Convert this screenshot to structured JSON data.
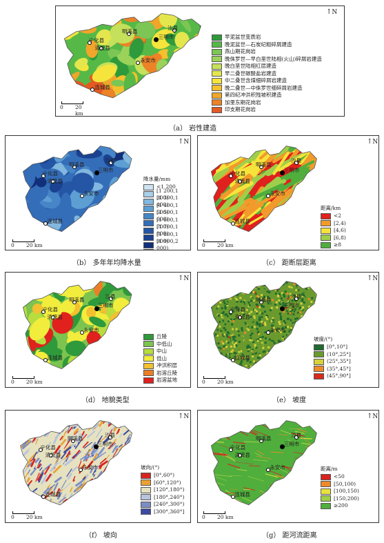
{
  "panels": [
    {
      "id": "a",
      "caption": "（a） 岩性建造",
      "north_label": "N",
      "scale_label_left": "0",
      "scale_label_right": "20 km",
      "places": [
        "宁化县",
        "清流县",
        "明溪县",
        "沙县",
        "三明市",
        "永安市",
        "连城县"
      ],
      "legend_title": "",
      "legend": [
        {
          "label": "早泥盆世变质岩",
          "color": "#2e9a3b"
        },
        {
          "label": "晚泥盆世—石炭纪粗碎屑建造",
          "color": "#56b947"
        },
        {
          "label": "燕山期花岗岩",
          "color": "#7bc654"
        },
        {
          "label": "晚侏罗世—早白垩世陆相(火山)碎屑岩建造",
          "color": "#9bd25a"
        },
        {
          "label": "晚白垩世陆相红层建造",
          "color": "#c5e05a"
        },
        {
          "label": "早二叠世碳酸盐岩建造",
          "color": "#e4e64e"
        },
        {
          "label": "中二叠世含煤细碎屑岩建造",
          "color": "#f4e43c"
        },
        {
          "label": "晚二叠世—中侏罗世细碎屑岩建造",
          "color": "#f6c02c"
        },
        {
          "label": "第四纪冲洪积残坡积建造",
          "color": "#f0a62a"
        },
        {
          "label": "加里东期花岗岩",
          "color": "#ec8327"
        },
        {
          "label": "印支期花岗岩",
          "color": "#e45a22"
        }
      ]
    },
    {
      "id": "b",
      "caption": "（b） 多年年均降水量",
      "north_label": "N",
      "scale_label_left": "0",
      "scale_label_right": "20 km",
      "places": [
        "宁化县",
        "清流县",
        "明溪县",
        "沙县",
        "三明市",
        "永安市",
        "连城县"
      ],
      "legend_title": "降水量/mm",
      "legend": [
        {
          "label": "<1 200",
          "color": "#cfe4f2"
        },
        {
          "label": "[1 200,1 300)",
          "color": "#a9cfe9"
        },
        {
          "label": "[1 300,1 400)",
          "color": "#82b7df"
        },
        {
          "label": "[1 400,1 500)",
          "color": "#5d9ed3"
        },
        {
          "label": "[1 500,1 600)",
          "color": "#4685c7"
        },
        {
          "label": "[1 600,1 700)",
          "color": "#346db8"
        },
        {
          "label": "[1 700,1 800)",
          "color": "#2556a5"
        },
        {
          "label": "[1 800,1 900)",
          "color": "#1a4290"
        },
        {
          "label": "[1 900,2 000)",
          "color": "#12307a"
        },
        {
          "label": "≥2 000",
          "color": "#0a1f5e"
        }
      ]
    },
    {
      "id": "c",
      "caption": "（c） 距断层距离",
      "north_label": "N",
      "scale_label_left": "0",
      "scale_label_right": "20 km",
      "places": [
        "宁化县",
        "清流县",
        "明溪县",
        "沙县",
        "三明市",
        "永安市",
        "连城县"
      ],
      "legend_title": "距离/km",
      "legend": [
        {
          "label": "<2",
          "color": "#e0211d"
        },
        {
          "label": "[2,4)",
          "color": "#f29a2b"
        },
        {
          "label": "[4,6)",
          "color": "#f6e43a"
        },
        {
          "label": "[6,8)",
          "color": "#9fcf4a"
        },
        {
          "label": "≥8",
          "color": "#4fae3c"
        }
      ]
    },
    {
      "id": "d",
      "caption": "（d） 地貌类型",
      "north_label": "N",
      "scale_label_left": "0",
      "scale_label_right": "20 km",
      "places": [
        "宁化县",
        "清流县",
        "明溪县",
        "沙县",
        "三明市",
        "永安市",
        "连城县"
      ],
      "legend_title": "",
      "legend": [
        {
          "label": "丘陵",
          "color": "#2e9a3b"
        },
        {
          "label": "中低山",
          "color": "#7cc44f"
        },
        {
          "label": "中山",
          "color": "#b7dd3f"
        },
        {
          "label": "低山",
          "color": "#f2ec3c"
        },
        {
          "label": "冲洪积层",
          "color": "#f2c030"
        },
        {
          "label": "岩溶丘陵",
          "color": "#ec7e27"
        },
        {
          "label": "岩溶盆地",
          "color": "#e0211d"
        }
      ]
    },
    {
      "id": "e",
      "caption": "（e） 坡度",
      "north_label": "N",
      "scale_label_left": "0",
      "scale_label_right": "20 km",
      "places": [
        "宁化县",
        "清流县",
        "明溪县",
        "沙县",
        "三明市",
        "永安市",
        "连城县"
      ],
      "legend_title": "坡度/(°)",
      "legend": [
        {
          "label": "[0°,10°]",
          "color": "#1f6b2e"
        },
        {
          "label": "(10°,25°]",
          "color": "#6a9a2e"
        },
        {
          "label": "(25°,35°]",
          "color": "#d6d23c"
        },
        {
          "label": "(35°,45°]",
          "color": "#ee8a2a"
        },
        {
          "label": "(45°,90°]",
          "color": "#d82a1e"
        }
      ]
    },
    {
      "id": "f",
      "caption": "（f） 坡向",
      "north_label": "N",
      "scale_label_left": "0",
      "scale_label_right": "20 km",
      "places": [
        "宁化县",
        "清流县",
        "明溪县",
        "沙县",
        "三明市",
        "永安市",
        "连城县"
      ],
      "legend_title": "坡向/(°)",
      "legend": [
        {
          "label": "[0°,60°)",
          "color": "#d8231f"
        },
        {
          "label": "[60°,120°)",
          "color": "#e9a232"
        },
        {
          "label": "[120°,180°)",
          "color": "#e6e2c0"
        },
        {
          "label": "[180°,240°)",
          "color": "#b9c3dc"
        },
        {
          "label": "[240°,300°)",
          "color": "#7b8ec4"
        },
        {
          "label": "[300°,360°]",
          "color": "#3d4aa3"
        }
      ]
    },
    {
      "id": "g",
      "caption": "（g） 距河流距离",
      "north_label": "N",
      "scale_label_left": "0",
      "scale_label_right": "20 km",
      "places": [
        "宁化县",
        "清流县",
        "明溪县",
        "沙县",
        "三明市",
        "永安市",
        "连城县"
      ],
      "legend_title": "距离/m",
      "legend": [
        {
          "label": "<50",
          "color": "#d8231f"
        },
        {
          "label": "[50,100)",
          "color": "#ee8a2a"
        },
        {
          "label": "[100,150)",
          "color": "#e9e23c"
        },
        {
          "label": "[150,200)",
          "color": "#9fcf4a"
        },
        {
          "label": "≥200",
          "color": "#4fae3c"
        }
      ]
    }
  ]
}
